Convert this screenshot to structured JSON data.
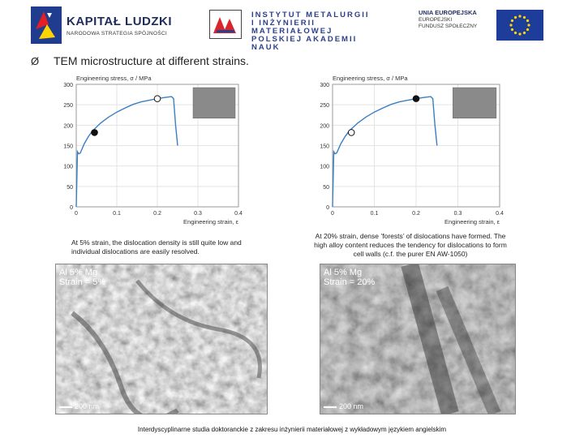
{
  "header": {
    "logo1": {
      "title": "KAPITAŁ LUDZKI",
      "subtitle": "NARODOWA STRATEGIA SPÓJNOŚCI"
    },
    "logo2": {
      "lines": [
        "INSTYTUT METALURGII",
        "I INŻYNIERII MATERIAŁOWEJ",
        "POLSKIEJ AKADEMII NAUK"
      ]
    },
    "logo3": {
      "line1": "UNIA EUROPEJSKA",
      "line2": "EUROPEJSKI",
      "line3": "FUNDUSZ SPOŁECZNY"
    }
  },
  "slide": {
    "bullet": "Ø",
    "headline": "TEM microstructure at different strains."
  },
  "captions": {
    "left": "At 5% strain, the dislocation density is still quite low and individual dislocations are easily resolved.",
    "right": "At 20% strain, dense ’forests’ of dislocations have formed. The high alloy content reduces the tendency for dislocations to form cell walls (c.f. the purer EN AW-1050)"
  },
  "tem_images": [
    {
      "label1": "Al 5% Mg",
      "label2": "Strain = 5%",
      "scale": "200 nm"
    },
    {
      "label1": "Al 5% Mg",
      "label2": "Strain = 20%",
      "scale": "200 nm"
    }
  ],
  "footer": "Interdyscyplinarne studia doktoranckie z zakresu inżynierii materiałowej z wykładowym językiem angielskim",
  "colors": {
    "curve": "#3a7fc1",
    "brand": "#1f2d5c",
    "eu_flag": "#1e3d9a",
    "eu_star": "#ffd400"
  },
  "chart_data": [
    {
      "type": "line",
      "ylabel": "Engineering stress, σ / MPa",
      "xlabel": "Engineering strain, ε",
      "xlim": [
        0,
        0.4
      ],
      "ylim": [
        0,
        300
      ],
      "xticks": [
        "0",
        "0.1",
        "0.2",
        "0.3",
        "0.4"
      ],
      "yticks": [
        "0",
        "50",
        "100",
        "150",
        "200",
        "250",
        "300"
      ],
      "series": [
        {
          "x": [
            0,
            0.003,
            0.006,
            0.01,
            0.02,
            0.03,
            0.04,
            0.06,
            0.08,
            0.1,
            0.12,
            0.14,
            0.16,
            0.18,
            0.2,
            0.22,
            0.235,
            0.24,
            0.245,
            0.25
          ],
          "y": [
            0,
            135,
            130,
            132,
            155,
            172,
            186,
            205,
            220,
            232,
            242,
            251,
            257,
            261,
            265,
            268,
            270,
            265,
            200,
            150
          ]
        }
      ],
      "markers": [
        {
          "x": 0.045,
          "y": 182,
          "style": "filled"
        },
        {
          "x": 0.2,
          "y": 265,
          "style": "open"
        }
      ]
    },
    {
      "type": "line",
      "ylabel": "Engineering stress, σ / MPa",
      "xlabel": "Engineering strain, ε",
      "xlim": [
        0,
        0.4
      ],
      "ylim": [
        0,
        300
      ],
      "xticks": [
        "0",
        "0.1",
        "0.2",
        "0.3",
        "0.4"
      ],
      "yticks": [
        "0",
        "50",
        "100",
        "150",
        "200",
        "250",
        "300"
      ],
      "series": [
        {
          "x": [
            0,
            0.003,
            0.006,
            0.01,
            0.02,
            0.03,
            0.04,
            0.06,
            0.08,
            0.1,
            0.12,
            0.14,
            0.16,
            0.18,
            0.2,
            0.22,
            0.235,
            0.24,
            0.245,
            0.25
          ],
          "y": [
            0,
            135,
            130,
            132,
            155,
            172,
            186,
            205,
            220,
            232,
            242,
            251,
            257,
            261,
            265,
            268,
            270,
            265,
            200,
            150
          ]
        }
      ],
      "markers": [
        {
          "x": 0.045,
          "y": 182,
          "style": "open"
        },
        {
          "x": 0.2,
          "y": 265,
          "style": "filled"
        }
      ]
    }
  ]
}
